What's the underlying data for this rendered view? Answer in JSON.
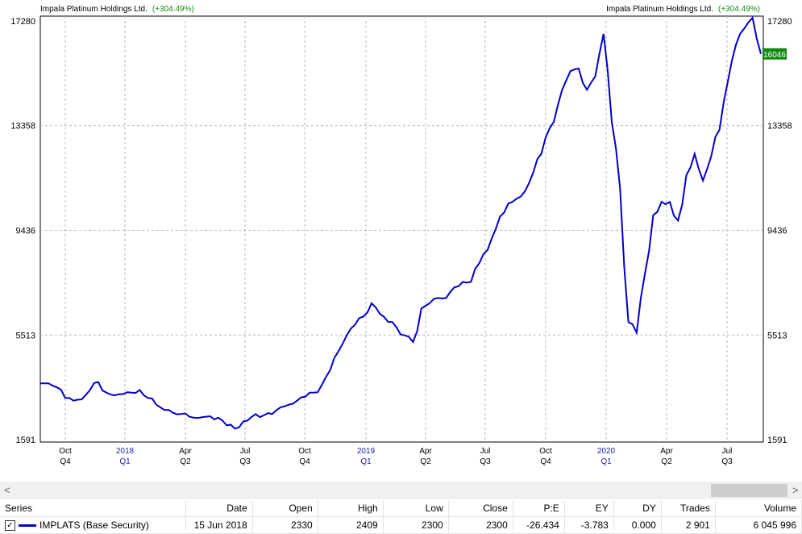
{
  "header": {
    "security_name": "Impala Platinum Holdings Ltd.",
    "change": "(+304.49%)"
  },
  "chart_data": {
    "type": "line",
    "y_ticks": [
      "17280",
      "13358",
      "9436",
      "5513",
      "1591"
    ],
    "ylim": [
      1591,
      17280
    ],
    "last_value_label": "16046",
    "x_month_labels": [
      "Oct",
      "Apr",
      "Jul",
      "Oct",
      "Apr",
      "Jul",
      "Oct",
      "Apr",
      "Jul"
    ],
    "x_year_labels": [
      "2018",
      "2019",
      "2020"
    ],
    "x_quarter_labels": [
      "Q4",
      "Q1",
      "Q2",
      "Q3",
      "Q4",
      "Q1",
      "Q2",
      "Q3",
      "Q4",
      "Q1",
      "Q2",
      "Q3"
    ],
    "grid": true,
    "series": [
      {
        "name": "IMPLATS (Base Security)",
        "color": "#0000cc",
        "values": [
          3700,
          3700,
          3550,
          3150,
          3050,
          3100,
          3450,
          3750,
          3350,
          3250,
          3300,
          3350,
          3450,
          3150,
          2900,
          2700,
          2600,
          2550,
          2450,
          2400,
          2450,
          2350,
          2300,
          2150,
          2050,
          2300,
          2550,
          2500,
          2550,
          2800,
          2900,
          3050,
          3200,
          3350,
          3650,
          4200,
          4900,
          5500,
          5900,
          6200,
          6700,
          6300,
          6000,
          5800,
          5500,
          5250,
          6500,
          6700,
          6900,
          6900,
          7300,
          7500,
          7500,
          8200,
          8700,
          9500,
          10100,
          10500,
          10700,
          11200,
          12100,
          12900,
          13500,
          14700,
          15400,
          15500,
          14700,
          15200,
          16800,
          13500,
          11000,
          6000,
          5600,
          7800,
          10000,
          10500,
          10500,
          9800,
          11500,
          12300,
          11300,
          12200,
          13200,
          15000,
          16400,
          17000,
          17400,
          16046
        ]
      }
    ]
  },
  "scrollbar": {
    "left_arrow": "<",
    "right_arrow": ">"
  },
  "grid": {
    "headers": [
      "Series",
      "Date",
      "Open",
      "High",
      "Low",
      "Close",
      "P:E",
      "EY",
      "DY",
      "Trades",
      "Volume"
    ],
    "row": {
      "checkbox": "✓",
      "series": "IMPLATS (Base Security)",
      "date": "15 Jun 2018",
      "open": "2330",
      "high": "2409",
      "low": "2300",
      "close": "2300",
      "pe": "-26.434",
      "ey": "-3.783",
      "dy": "0.000",
      "trades": "2 901",
      "volume": "6 045 996"
    }
  }
}
